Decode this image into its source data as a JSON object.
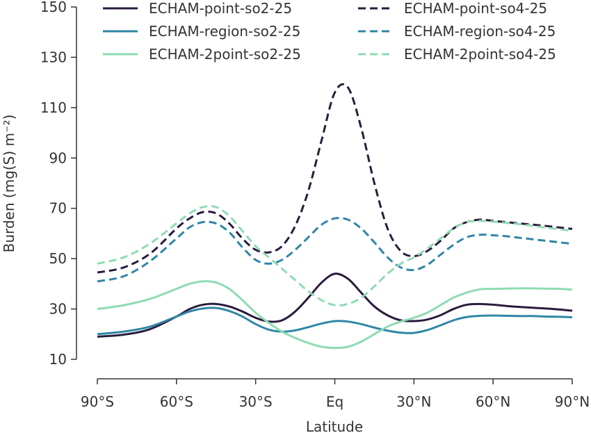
{
  "chart_data": {
    "type": "line",
    "xlabel": "Latitude",
    "ylabel": "Burden (mg(S) m⁻²)",
    "xlim": [
      -90,
      90
    ],
    "ylim": [
      10,
      150
    ],
    "x_ticks": [
      {
        "value": -90,
        "label": "90°S"
      },
      {
        "value": -60,
        "label": "60°S"
      },
      {
        "value": -30,
        "label": "30°S"
      },
      {
        "value": 0,
        "label": "Eq"
      },
      {
        "value": 30,
        "label": "30°N"
      },
      {
        "value": 60,
        "label": "60°N"
      },
      {
        "value": 90,
        "label": "90°N"
      }
    ],
    "y_ticks": [
      10,
      30,
      50,
      70,
      90,
      110,
      130,
      150
    ],
    "grid": false,
    "legend_position": "top",
    "x": [
      -90,
      -80,
      -70,
      -60,
      -55,
      -50,
      -45,
      -40,
      -35,
      -30,
      -25,
      -20,
      -15,
      -10,
      -5,
      0,
      5,
      10,
      15,
      20,
      25,
      30,
      35,
      40,
      45,
      50,
      55,
      60,
      65,
      70,
      75,
      80,
      85,
      90
    ],
    "series": [
      {
        "name": "ECHAM-point-so2-25",
        "color": "#2a1b3d",
        "dash": "solid",
        "values": [
          19.0,
          19.8,
          22.0,
          27.0,
          30.0,
          31.7,
          32.0,
          31.0,
          29.0,
          26.5,
          25.0,
          25.5,
          29.0,
          34.5,
          40.5,
          44.0,
          42.0,
          36.5,
          31.0,
          27.5,
          25.5,
          25.2,
          25.8,
          27.5,
          30.0,
          31.7,
          32.0,
          31.7,
          31.2,
          30.8,
          30.5,
          30.2,
          29.8,
          29.3
        ]
      },
      {
        "name": "ECHAM-region-so2-25",
        "color": "#2f86a6",
        "dash": "solid",
        "values": [
          20.0,
          21.0,
          23.0,
          27.0,
          29.0,
          30.2,
          30.4,
          29.2,
          27.0,
          24.0,
          21.8,
          21.0,
          21.5,
          22.8,
          24.2,
          25.2,
          25.0,
          24.0,
          22.6,
          21.4,
          20.6,
          20.5,
          21.6,
          23.5,
          25.5,
          26.8,
          27.3,
          27.4,
          27.3,
          27.2,
          27.2,
          27.0,
          26.9,
          26.7
        ]
      },
      {
        "name": "ECHAM-2point-so2-25",
        "color": "#8edbb2",
        "dash": "solid",
        "values": [
          30.0,
          31.5,
          34.0,
          38.0,
          40.0,
          41.0,
          40.5,
          38.0,
          33.5,
          28.5,
          24.5,
          21.0,
          18.5,
          16.5,
          15.0,
          14.5,
          15.0,
          17.0,
          20.0,
          23.0,
          25.0,
          26.5,
          28.5,
          31.5,
          34.5,
          36.5,
          37.8,
          38.0,
          38.1,
          38.2,
          38.2,
          38.1,
          38.0,
          37.7
        ]
      },
      {
        "name": "ECHAM-point-so4-25",
        "color": "#2a1b3d",
        "dash": "dashed",
        "values": [
          44.5,
          46.5,
          52.0,
          62.0,
          66.0,
          68.5,
          68.0,
          64.0,
          58.0,
          53.5,
          52.5,
          55.0,
          63.0,
          77.0,
          97.0,
          116.0,
          118.0,
          102.0,
          80.0,
          62.0,
          53.0,
          51.0,
          53.0,
          57.0,
          62.0,
          64.5,
          65.5,
          65.0,
          64.5,
          64.0,
          63.5,
          63.0,
          62.4,
          61.8
        ]
      },
      {
        "name": "ECHAM-region-so4-25",
        "color": "#2f86a6",
        "dash": "dashed",
        "values": [
          41.0,
          43.0,
          49.0,
          58.0,
          62.5,
          64.5,
          64.0,
          60.5,
          54.5,
          49.5,
          48.0,
          49.5,
          53.5,
          58.5,
          63.5,
          66.0,
          65.5,
          62.0,
          56.5,
          50.5,
          46.5,
          45.5,
          47.5,
          51.5,
          55.5,
          58.5,
          59.5,
          59.3,
          58.9,
          58.3,
          57.7,
          57.1,
          56.5,
          55.9
        ]
      },
      {
        "name": "ECHAM-2point-so4-25",
        "color": "#8edbb2",
        "dash": "dashed",
        "values": [
          48.0,
          50.5,
          56.0,
          64.0,
          68.0,
          70.5,
          70.5,
          67.0,
          61.0,
          55.0,
          50.5,
          46.0,
          41.5,
          37.0,
          33.5,
          31.5,
          32.0,
          34.5,
          39.0,
          44.0,
          48.0,
          50.5,
          54.0,
          58.0,
          62.0,
          64.5,
          65.0,
          64.7,
          64.2,
          63.7,
          63.0,
          62.3,
          61.7,
          61.0
        ]
      }
    ]
  }
}
